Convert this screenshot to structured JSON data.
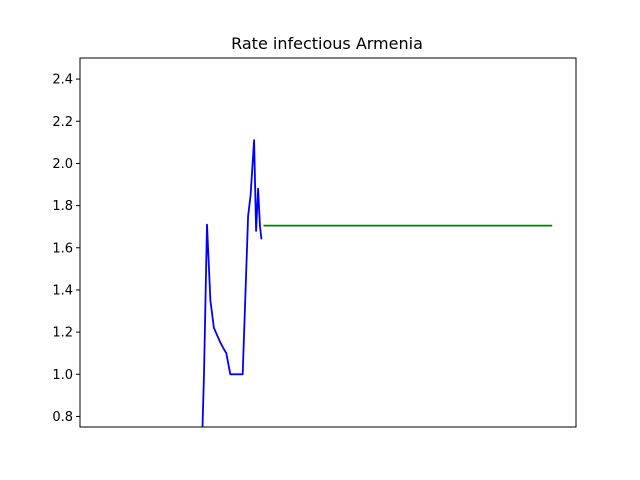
{
  "chart_data": {
    "type": "line",
    "title": "Rate infectious Armenia",
    "xlabel": "",
    "ylabel": "",
    "ylim": [
      0.75,
      2.5
    ],
    "xlim": [
      0,
      100
    ],
    "yticks": [
      0.8,
      1.0,
      1.2,
      1.4,
      1.6,
      1.8,
      2.0,
      2.2,
      2.4
    ],
    "ytick_labels": [
      "0.8",
      "1.0",
      "1.2",
      "1.4",
      "1.6",
      "1.8",
      "2.0",
      "2.2",
      "2.4"
    ],
    "grid": false,
    "series": [
      {
        "color": "#0000ff",
        "x": [
          24.7,
          25.0,
          25.6,
          26.3,
          27.0,
          28.3,
          29.0,
          29.5,
          30.3,
          31.4,
          32.8,
          33.9,
          34.4,
          35.1,
          35.5,
          35.9,
          36.3,
          36.6
        ],
        "y": [
          0.75,
          1.0,
          1.71,
          1.35,
          1.22,
          1.15,
          1.12,
          1.1,
          1.0,
          1.0,
          1.0,
          1.75,
          1.85,
          2.11,
          1.68,
          1.88,
          1.7,
          1.64
        ]
      },
      {
        "color": "#008000",
        "x": [
          37.0,
          95.2
        ],
        "y": [
          1.705,
          1.705
        ]
      }
    ]
  }
}
